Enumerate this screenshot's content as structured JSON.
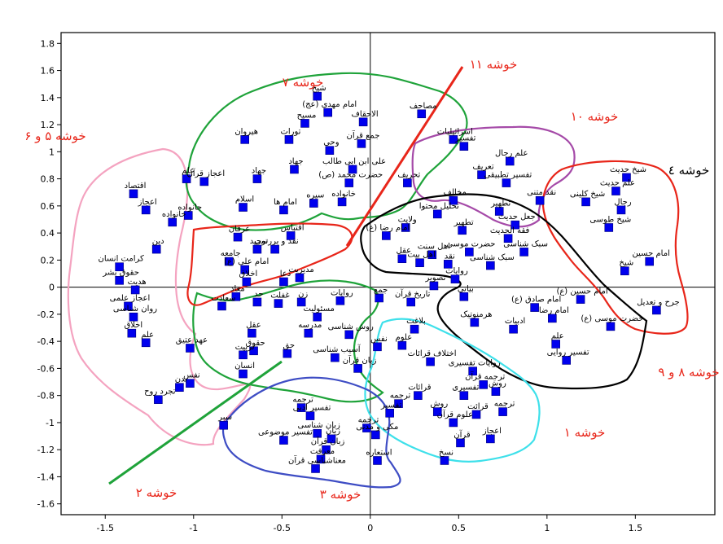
{
  "chart_data": {
    "type": "scatter",
    "title": "",
    "xlabel": "",
    "ylabel": "",
    "xlim": [
      -1.75,
      1.95
    ],
    "ylim": [
      -1.68,
      1.88
    ],
    "grid": false,
    "x_ticks": [
      -1.5,
      -1,
      -0.5,
      0,
      0.5,
      1,
      1.5
    ],
    "x_tick_labels": [
      "-1.5",
      "-1",
      "-0.5",
      "0",
      "0.5",
      "1",
      "1.5"
    ],
    "y_ticks": [
      1.8,
      1.6,
      1.4,
      1.2,
      1,
      0.8,
      0.6,
      0.4,
      0.2,
      0,
      -0.2,
      -0.4,
      -0.6,
      -0.8,
      -1,
      -1.2,
      -1.4,
      -1.6
    ],
    "y_tick_labels": [
      "1.8",
      "1.6",
      "1.4",
      "1.2",
      "1",
      "0.8",
      "0.6",
      "0.4",
      "0.2",
      "0",
      "-0.2",
      "-0.4",
      "-0.6",
      "-0.8",
      "-1",
      "-1.2",
      "-1.4",
      "-1.6"
    ],
    "points": [
      {
        "x": -1.34,
        "y": 0.69,
        "label": "اقتصاد"
      },
      {
        "x": -1.27,
        "y": 0.57,
        "label": "اعجاز"
      },
      {
        "x": -1.12,
        "y": 0.48,
        "label": "خانواده"
      },
      {
        "x": -1.03,
        "y": 0.53,
        "label": "جانواده"
      },
      {
        "x": -1.21,
        "y": 0.28,
        "label": "دین"
      },
      {
        "x": -1.42,
        "y": 0.15,
        "label": "کرامت انسان"
      },
      {
        "x": -1.42,
        "y": 0.05,
        "label": "حقوق بشر"
      },
      {
        "x": -1.33,
        "y": -0.02,
        "label": "هدیت"
      },
      {
        "x": -1.37,
        "y": -0.14,
        "label": "اعجاز علمی"
      },
      {
        "x": -1.34,
        "y": -0.22,
        "label": "روان شناسی"
      },
      {
        "x": -1.35,
        "y": -0.34,
        "label": "اخلاق"
      },
      {
        "x": -1.27,
        "y": -0.41,
        "label": "علم"
      },
      {
        "x": -1.02,
        "y": -0.45,
        "label": "عهد عتیق"
      },
      {
        "x": -1.02,
        "y": -0.71,
        "label": "نفس"
      },
      {
        "x": -1.08,
        "y": -0.74,
        "label": "بدن"
      },
      {
        "x": -1.2,
        "y": -0.83,
        "label": "تجرد روح"
      },
      {
        "x": -1.04,
        "y": 0.8,
        "label": "علم"
      },
      {
        "x": -0.94,
        "y": 0.78,
        "label": "اعجاز قرآن"
      },
      {
        "x": -0.71,
        "y": 1.09,
        "label": "هیروان"
      },
      {
        "x": -0.46,
        "y": 1.09,
        "label": "تورات"
      },
      {
        "x": -0.37,
        "y": 1.21,
        "label": "مسیح"
      },
      {
        "x": -0.3,
        "y": 1.41,
        "label": "شیخ"
      },
      {
        "x": -0.24,
        "y": 1.29,
        "label": "امام مهدی (عج)"
      },
      {
        "x": -0.04,
        "y": 1.22,
        "label": "الاحقاف"
      },
      {
        "x": -0.23,
        "y": 1.01,
        "label": "وحی"
      },
      {
        "x": -0.43,
        "y": 0.87,
        "label": "جهاد"
      },
      {
        "x": -0.64,
        "y": 0.8,
        "label": "جهاد"
      },
      {
        "x": -0.05,
        "y": 1.06,
        "label": "جمع قرآن"
      },
      {
        "x": 0.29,
        "y": 1.28,
        "label": "مصاحف"
      },
      {
        "x": -0.1,
        "y": 0.87,
        "label": "علی ابن ابی طالب"
      },
      {
        "x": -0.12,
        "y": 0.77,
        "label": "حضرت محمد (ص)"
      },
      {
        "x": -0.72,
        "y": 0.59,
        "label": "اسلام"
      },
      {
        "x": -0.49,
        "y": 0.57,
        "label": "امام ها"
      },
      {
        "x": -0.32,
        "y": 0.62,
        "label": "سیره"
      },
      {
        "x": -0.16,
        "y": 0.63,
        "label": "خانواده"
      },
      {
        "x": 0.21,
        "y": 0.77,
        "label": "تحریف"
      },
      {
        "x": 0.47,
        "y": 1.09,
        "label": "اسرائیلیات"
      },
      {
        "x": 0.53,
        "y": 1.04,
        "label": "تفسیر"
      },
      {
        "x": 0.63,
        "y": 0.83,
        "label": "تعریف"
      },
      {
        "x": 0.79,
        "y": 0.93,
        "label": "علم رجال"
      },
      {
        "x": 0.77,
        "y": 0.77,
        "label": "تفسیر تطبیقی"
      },
      {
        "x": 0.96,
        "y": 0.64,
        "label": "نقد متنی"
      },
      {
        "x": 0.47,
        "y": 0.64,
        "label": "مخالف"
      },
      {
        "x": 0.38,
        "y": 0.54,
        "label": "تحلیل محتوا"
      },
      {
        "x": 0.2,
        "y": 0.44,
        "label": "ولایت"
      },
      {
        "x": 0.52,
        "y": 0.42,
        "label": "تطهیر"
      },
      {
        "x": 0.73,
        "y": 0.56,
        "label": "تطهیر"
      },
      {
        "x": 0.82,
        "y": 0.46,
        "label": "جعل حدیث"
      },
      {
        "x": 0.78,
        "y": 0.36,
        "label": "فقه الحدیث"
      },
      {
        "x": 0.87,
        "y": 0.26,
        "label": "سبک شناسی"
      },
      {
        "x": 0.56,
        "y": 0.26,
        "label": "حضرت موسی"
      },
      {
        "x": 0.35,
        "y": 0.24,
        "label": "اهل سنت"
      },
      {
        "x": 0.09,
        "y": 0.38,
        "label": "امام رضا (ع)"
      },
      {
        "x": 0.18,
        "y": 0.21,
        "label": "عقل"
      },
      {
        "x": 0.28,
        "y": 0.18,
        "label": "اهل بیت"
      },
      {
        "x": 0.44,
        "y": 0.17,
        "label": "نقد"
      },
      {
        "x": 0.68,
        "y": 0.16,
        "label": "سبک شناسی"
      },
      {
        "x": 0.48,
        "y": 0.06,
        "label": "روایات"
      },
      {
        "x": 0.36,
        "y": 0.01,
        "label": "تصویر"
      },
      {
        "x": -0.45,
        "y": 0.38,
        "label": "اقتباس"
      },
      {
        "x": -0.75,
        "y": 0.37,
        "label": "عرفان"
      },
      {
        "x": -0.64,
        "y": 0.28,
        "label": "توحید"
      },
      {
        "x": -0.54,
        "y": 0.28,
        "label": "نقد و بررسی"
      },
      {
        "x": -0.8,
        "y": 0.19,
        "label": "جامعه"
      },
      {
        "x": -0.71,
        "y": 0.13,
        "label": "امام علی (ع)"
      },
      {
        "x": -0.4,
        "y": 0.07,
        "label": "مدیریت"
      },
      {
        "x": -0.7,
        "y": 0.04,
        "label": "اخلاق"
      },
      {
        "x": -0.49,
        "y": 0.04,
        "label": "دعا"
      },
      {
        "x": -0.76,
        "y": -0.07,
        "label": "معاد"
      },
      {
        "x": -0.64,
        "y": -0.11,
        "label": "حد"
      },
      {
        "x": -0.84,
        "y": -0.14,
        "label": "سعادت"
      },
      {
        "x": -0.52,
        "y": -0.12,
        "label": "غفلت"
      },
      {
        "x": -0.39,
        "y": -0.11,
        "label": "زن"
      },
      {
        "x": -0.17,
        "y": -0.1,
        "label": "روایات"
      },
      {
        "x": -0.3,
        "y": -0.22,
        "label": "مسئولیت"
      },
      {
        "x": -0.35,
        "y": -0.34,
        "label": "مدرسه"
      },
      {
        "x": -0.67,
        "y": -0.34,
        "label": "عقل"
      },
      {
        "x": -0.66,
        "y": -0.47,
        "label": "حقوق"
      },
      {
        "x": -0.72,
        "y": -0.5,
        "label": "تربیت"
      },
      {
        "x": -0.72,
        "y": -0.64,
        "label": "انسان"
      },
      {
        "x": -0.47,
        "y": -0.49,
        "label": "حق"
      },
      {
        "x": -0.2,
        "y": -0.52,
        "label": "آسیب شناسی"
      },
      {
        "x": -0.07,
        "y": -0.6,
        "label": "زبان قرآن"
      },
      {
        "x": -0.12,
        "y": -0.35,
        "label": "روش شناسی"
      },
      {
        "x": 0.04,
        "y": -0.44,
        "label": "نفس"
      },
      {
        "x": 0.18,
        "y": -0.43,
        "label": "علوم"
      },
      {
        "x": 0.05,
        "y": -0.08,
        "label": "جمع"
      },
      {
        "x": 0.23,
        "y": -0.11,
        "label": "تاریخ قرآن"
      },
      {
        "x": 0.25,
        "y": -0.31,
        "label": "بلاغت"
      },
      {
        "x": 0.53,
        "y": -0.07,
        "label": "بیانی"
      },
      {
        "x": 0.59,
        "y": -0.26,
        "label": "هرمنوتیک"
      },
      {
        "x": 0.81,
        "y": -0.31,
        "label": "ادبیات"
      },
      {
        "x": 0.93,
        "y": -0.15,
        "label": "امام صادق (ع)"
      },
      {
        "x": 1.03,
        "y": -0.23,
        "label": "امام رضا"
      },
      {
        "x": 1.05,
        "y": -0.42,
        "label": "علم"
      },
      {
        "x": 1.11,
        "y": -0.54,
        "label": "تفسیر روایی"
      },
      {
        "x": 1.19,
        "y": -0.09,
        "label": "امام حسین (ع)"
      },
      {
        "x": 1.36,
        "y": -0.29,
        "label": "حضرت موسی (ع)"
      },
      {
        "x": 1.62,
        "y": -0.17,
        "label": "جرح و تعدیل"
      },
      {
        "x": 1.45,
        "y": 0.81,
        "label": "شیخ حدیث"
      },
      {
        "x": 1.39,
        "y": 0.71,
        "label": "علم حدیث"
      },
      {
        "x": 1.22,
        "y": 0.63,
        "label": "شیخ کلینی"
      },
      {
        "x": 1.42,
        "y": 0.57,
        "label": "رجال"
      },
      {
        "x": 1.35,
        "y": 0.44,
        "label": "شیخ طوسی"
      },
      {
        "x": 1.58,
        "y": 0.19,
        "label": "امام حسین"
      },
      {
        "x": 1.44,
        "y": 0.12,
        "label": "شیخ"
      },
      {
        "x": 0.34,
        "y": -0.55,
        "label": "اختلاف قرائات"
      },
      {
        "x": 0.58,
        "y": -0.62,
        "label": "روایات تفسیری"
      },
      {
        "x": 0.64,
        "y": -0.72,
        "label": "ترجمه قرآن"
      },
      {
        "x": 0.71,
        "y": -0.77,
        "label": "روش"
      },
      {
        "x": 0.53,
        "y": -0.8,
        "label": "تفسیری"
      },
      {
        "x": 0.27,
        "y": -0.8,
        "label": "قرائات"
      },
      {
        "x": 0.16,
        "y": -0.86,
        "label": "ترجمه"
      },
      {
        "x": 0.11,
        "y": -0.93,
        "label": "تفسیر"
      },
      {
        "x": 0.38,
        "y": -0.92,
        "label": "روش"
      },
      {
        "x": 0.6,
        "y": -0.94,
        "label": "قرائت"
      },
      {
        "x": 0.75,
        "y": -0.92,
        "label": "ترجمه"
      },
      {
        "x": 0.47,
        "y": -1.0,
        "label": "علوم قرآن"
      },
      {
        "x": 0.51,
        "y": -1.15,
        "label": "قرآن"
      },
      {
        "x": 0.68,
        "y": -1.12,
        "label": "اعجاز"
      },
      {
        "x": 0.42,
        "y": -1.28,
        "label": "نسخ"
      },
      {
        "x": 0.03,
        "y": -1.09,
        "label": "مکی و مدنی"
      },
      {
        "x": 0.04,
        "y": -1.28,
        "label": "استعاره"
      },
      {
        "x": -0.02,
        "y": -1.04,
        "label": "ترجمه"
      },
      {
        "x": -0.39,
        "y": -0.89,
        "label": "ترجمه"
      },
      {
        "x": -0.34,
        "y": -0.95,
        "label": "تفسیر ادبی"
      },
      {
        "x": -0.49,
        "y": -1.13,
        "label": "تفسیر موضوعی"
      },
      {
        "x": -0.3,
        "y": -1.08,
        "label": "زبان شناسی"
      },
      {
        "x": -0.22,
        "y": -1.12,
        "label": "زبان"
      },
      {
        "x": -0.25,
        "y": -1.2,
        "label": "زبان قرآن"
      },
      {
        "x": -0.28,
        "y": -1.27,
        "label": "معرفت"
      },
      {
        "x": -0.31,
        "y": -1.34,
        "label": "معناشناسی قرآن"
      },
      {
        "x": -0.83,
        "y": -1.02,
        "label": "سبر"
      }
    ],
    "cluster_labels": [
      {
        "text": "خوشه ۷",
        "color": "#e8261a"
      },
      {
        "text": "خوشه ۱۱",
        "color": "#e8261a"
      },
      {
        "text": "خوشه ۱۰",
        "color": "#e8261a"
      },
      {
        "text": "خوشه ٤",
        "color": "#000000"
      },
      {
        "text": "خوشه ۵ و ۶",
        "color": "#e8261a"
      },
      {
        "text": "خوشه ۸ و ۹",
        "color": "#e8261a"
      },
      {
        "text": "خوشه ۱",
        "color": "#e8261a"
      },
      {
        "text": "خوشه ۳",
        "color": "#e8261a"
      },
      {
        "text": "خوشه ۲",
        "color": "#e8261a"
      }
    ],
    "colors": {
      "points": "#0000ee",
      "cluster_green": "#1fa33a",
      "cluster_red": "#e8261a",
      "cluster_pink": "#f4a3c0",
      "cluster_purple": "#a54aa8",
      "cluster_black": "#000000",
      "cluster_cyan": "#3ee0ea",
      "cluster_blue": "#3e4dc4"
    }
  }
}
